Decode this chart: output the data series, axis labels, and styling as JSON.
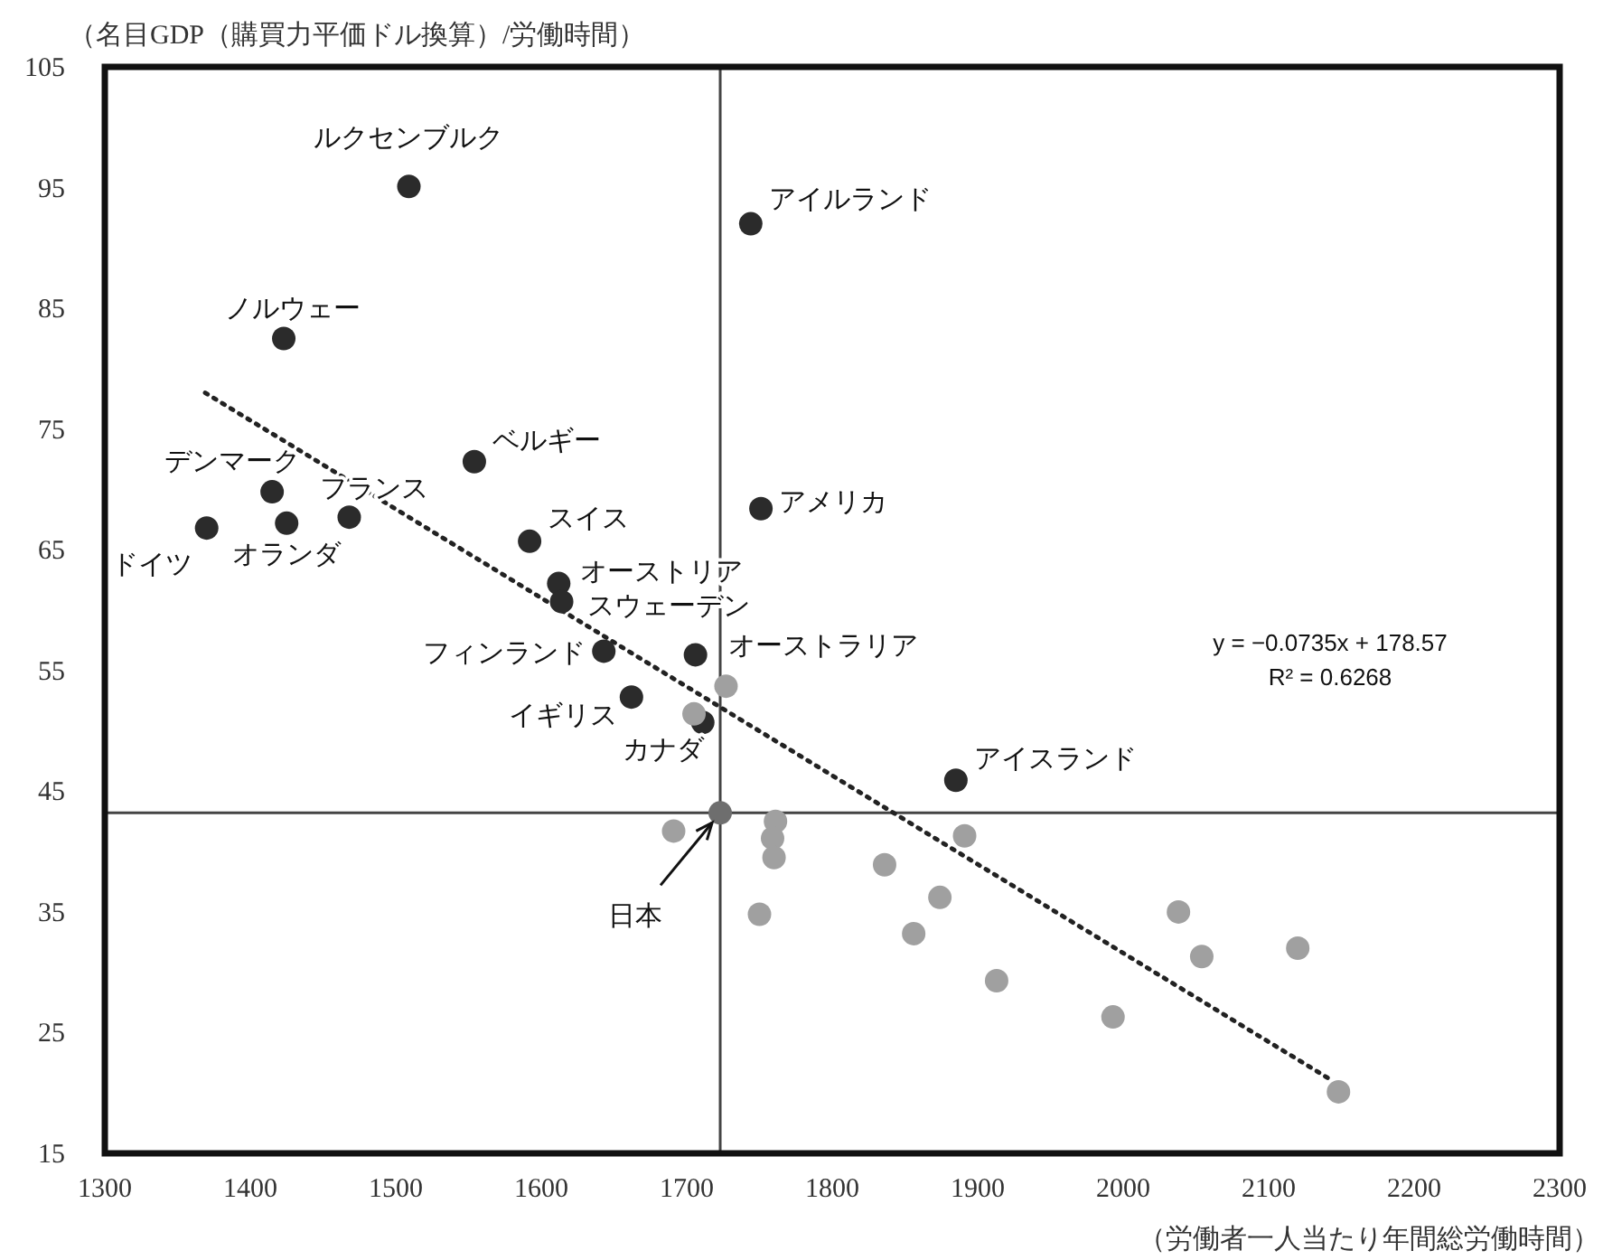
{
  "chart_data": {
    "type": "scatter",
    "xlabel": "（労働者一人当たり年間総労働時間）",
    "ylabel": "（名目GDP（購買力平価ドル換算）/労働時間）",
    "xlim": [
      1300,
      2300
    ],
    "ylim": [
      15,
      105
    ],
    "xticks": [
      1300,
      1400,
      1500,
      1600,
      1700,
      1800,
      1900,
      2000,
      2100,
      2200,
      2300
    ],
    "yticks": [
      15,
      25,
      35,
      45,
      55,
      65,
      75,
      85,
      95,
      105
    ],
    "grid": false,
    "marker": "circle",
    "series": [
      {
        "color": "#2b2b2b",
        "x": [
          1509,
          1744,
          1423,
          1554,
          1415,
          1468,
          1425,
          1370,
          1592,
          1612,
          1614,
          1643,
          1706,
          1662,
          1711,
          1751,
          1885
        ],
        "values": [
          95.1,
          92.0,
          82.5,
          72.3,
          69.8,
          67.7,
          67.2,
          66.8,
          65.7,
          62.2,
          60.7,
          56.6,
          56.3,
          52.8,
          50.7,
          68.4,
          45.9
        ]
      },
      {
        "color": "#a0a0a0",
        "x": [
          1727,
          1705,
          1691,
          1761,
          1759,
          1760,
          1750,
          1836,
          1874,
          1856,
          1891,
          1913,
          1993,
          2038,
          2054,
          2120,
          2148
        ],
        "values": [
          53.7,
          51.4,
          41.7,
          42.5,
          41.1,
          39.5,
          34.8,
          38.9,
          36.2,
          33.2,
          41.3,
          29.3,
          26.3,
          35.0,
          31.3,
          32.0,
          20.1
        ]
      },
      {
        "color": "#6e6e6e",
        "x": [
          1723
        ],
        "values": [
          43.2
        ]
      },
      {
        "type": "line",
        "color": "#222222",
        "line_style": "dotted",
        "marker": "none",
        "x": [
          1369,
          2144
        ],
        "values": [
          78.0,
          21.0
        ]
      }
    ],
    "ref_lines": [
      {
        "axis": "x",
        "value": 1723,
        "color": "#444444"
      },
      {
        "axis": "y",
        "value": 43.2,
        "color": "#444444"
      }
    ],
    "annotations": [
      {
        "text": "ルクセンブルク",
        "x": 1509,
        "y": 95.1
      },
      {
        "text": "アイルランド",
        "x": 1744,
        "y": 92.0
      },
      {
        "text": "ノルウェー",
        "x": 1423,
        "y": 82.5
      },
      {
        "text": "ベルギー",
        "x": 1554,
        "y": 72.3
      },
      {
        "text": "デンマーク",
        "x": 1415,
        "y": 69.8
      },
      {
        "text": "フランス",
        "x": 1468,
        "y": 67.7
      },
      {
        "text": "オランダ",
        "x": 1425,
        "y": 67.2
      },
      {
        "text": "ドイツ",
        "x": 1370,
        "y": 66.8
      },
      {
        "text": "スイス",
        "x": 1592,
        "y": 65.7
      },
      {
        "text": "オーストリア",
        "x": 1612,
        "y": 62.2
      },
      {
        "text": "スウェーデン",
        "x": 1614,
        "y": 60.7
      },
      {
        "text": "フィンランド",
        "x": 1643,
        "y": 56.6
      },
      {
        "text": "オーストラリア",
        "x": 1706,
        "y": 56.3
      },
      {
        "text": "イギリス",
        "x": 1662,
        "y": 52.8
      },
      {
        "text": "カナダ",
        "x": 1711,
        "y": 50.7
      },
      {
        "text": "アメリカ",
        "x": 1751,
        "y": 68.4
      },
      {
        "text": "アイスランド",
        "x": 1885,
        "y": 45.9
      },
      {
        "text": "日本",
        "x": 1723,
        "y": 43.2
      },
      "y = −0.0735x + 178.57",
      "R² = 0.6268"
    ]
  }
}
